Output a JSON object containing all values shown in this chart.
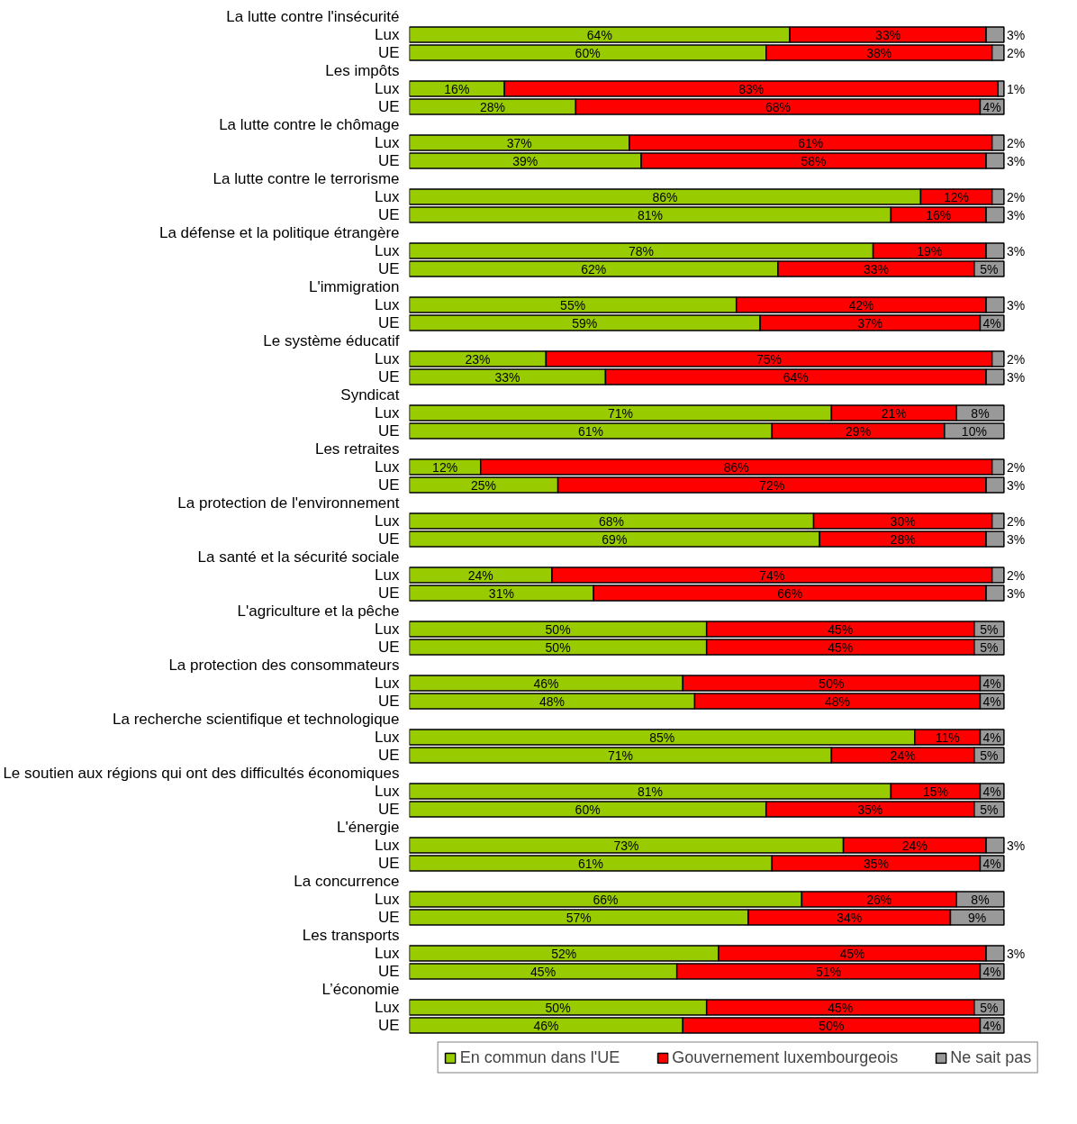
{
  "chart_data": {
    "type": "bar",
    "orientation": "horizontal",
    "stacked": true,
    "tick_labels": "y",
    "grid": false,
    "legend": "bottom",
    "categories": [
      "La lutte contre l'insécurité",
      "Lux",
      "UE",
      "Les impôts",
      "Lux",
      "UE",
      "La lutte contre le chômage",
      "Lux",
      "UE",
      "La lutte contre le terrorisme",
      "Lux",
      "UE",
      "La défense et la politique étrangère",
      "Lux",
      "UE",
      "L'immigration",
      "Lux",
      "UE",
      "Le système éducatif",
      "Lux",
      "UE",
      "Syndicat",
      "Lux",
      "UE",
      "Les retraites",
      "Lux",
      "UE",
      "La protection de l'environnement",
      "Lux",
      "UE",
      "La santé et la sécurité sociale",
      "Lux",
      "UE",
      "L'agriculture et la pêche",
      "Lux",
      "UE",
      "La protection des consommateurs",
      "Lux",
      "UE",
      "La recherche scientifique et technologique",
      "Lux",
      "UE",
      "Le soutien aux régions qui ont des difficultés économiques",
      "Lux",
      "UE",
      "L'énergie",
      "Lux",
      "UE",
      "La concurrence",
      "Lux",
      "UE",
      "Les transports",
      "Lux",
      "UE",
      "L’économie",
      "Lux",
      "UE"
    ],
    "series": [
      {
        "name": "En commun dans l'UE",
        "color": "#99cc00",
        "values": [
          null,
          64,
          60,
          null,
          16,
          28,
          null,
          37,
          39,
          null,
          86,
          81,
          null,
          78,
          62,
          null,
          55,
          59,
          null,
          23,
          33,
          null,
          71,
          61,
          null,
          12,
          25,
          null,
          68,
          69,
          null,
          24,
          31,
          null,
          50,
          50,
          null,
          46,
          48,
          null,
          85,
          71,
          null,
          81,
          60,
          null,
          73,
          61,
          null,
          66,
          57,
          null,
          52,
          45,
          null,
          50,
          46
        ],
        "value_labels": [
          null,
          "64%",
          "60%",
          null,
          "16%",
          "28%",
          null,
          "37%",
          "39%",
          null,
          "86%",
          "81%",
          null,
          "78%",
          "62%",
          null,
          "55%",
          "59%",
          null,
          "23%",
          "33%",
          null,
          "71%",
          "61%",
          null,
          "12%",
          "25%",
          null,
          "68%",
          "69%",
          null,
          "24%",
          "31%",
          null,
          "50%",
          "50%",
          null,
          "46%",
          "48%",
          null,
          "85%",
          "71%",
          null,
          "81%",
          "60%",
          null,
          "73%",
          "61%",
          null,
          "66%",
          "57%",
          null,
          "52%",
          "45%",
          null,
          "50%",
          "46%"
        ]
      },
      {
        "name": "Gouvernement luxembourgeois",
        "color": "#ff0000",
        "values": [
          null,
          33,
          38,
          null,
          83,
          68,
          null,
          61,
          58,
          null,
          12,
          16,
          null,
          19,
          33,
          null,
          42,
          37,
          null,
          75,
          64,
          null,
          21,
          29,
          null,
          86,
          72,
          null,
          30,
          28,
          null,
          74,
          66,
          null,
          45,
          45,
          null,
          50,
          48,
          null,
          11,
          24,
          null,
          15,
          35,
          null,
          24,
          35,
          null,
          26,
          34,
          null,
          45,
          51,
          null,
          45,
          50
        ],
        "value_labels": [
          null,
          "33%",
          "38%",
          null,
          "83%",
          "68%",
          null,
          "61%",
          "58%",
          null,
          "12%",
          "16%",
          null,
          "19%",
          "33%",
          null,
          "42%",
          "37%",
          null,
          "75%",
          "64%",
          null,
          "21%",
          "29%",
          null,
          "86%",
          "72%",
          null,
          "30%",
          "28%",
          null,
          "74%",
          "66%",
          null,
          "45%",
          "45%",
          null,
          "50%",
          "48%",
          null,
          "11%",
          "24%",
          null,
          "15%",
          "35%",
          null,
          "24%",
          "35%",
          null,
          "26%",
          "34%",
          null,
          "45%",
          "51%",
          null,
          "45%",
          "50%"
        ]
      },
      {
        "name": "Ne sait pas",
        "color": "#999999",
        "values": [
          null,
          3,
          2,
          null,
          1,
          4,
          null,
          2,
          3,
          null,
          2,
          3,
          null,
          3,
          5,
          null,
          3,
          4,
          null,
          2,
          3,
          null,
          8,
          10,
          null,
          2,
          3,
          null,
          2,
          3,
          null,
          2,
          3,
          null,
          5,
          5,
          null,
          4,
          4,
          null,
          4,
          5,
          null,
          4,
          5,
          null,
          3,
          4,
          null,
          8,
          9,
          null,
          3,
          4,
          null,
          5,
          4
        ],
        "value_labels": [
          null,
          "3%",
          "2%",
          null,
          "1%",
          "4%",
          null,
          "2%",
          "3%",
          null,
          "2%",
          "3%",
          null,
          "3%",
          "5%",
          null,
          "3%",
          "4%",
          null,
          "2%",
          "3%",
          null,
          "8%",
          "10%",
          null,
          "2%",
          "3%",
          null,
          "2%",
          "3%",
          null,
          "2%",
          "3%",
          null,
          "5%",
          "5%",
          null,
          "4%",
          "4%",
          null,
          "4%",
          "5%",
          null,
          "4%",
          "5%",
          null,
          "3%",
          "4%",
          null,
          "8%",
          "9%",
          null,
          "3%",
          "4%",
          null,
          "5%",
          "4%"
        ]
      }
    ]
  }
}
